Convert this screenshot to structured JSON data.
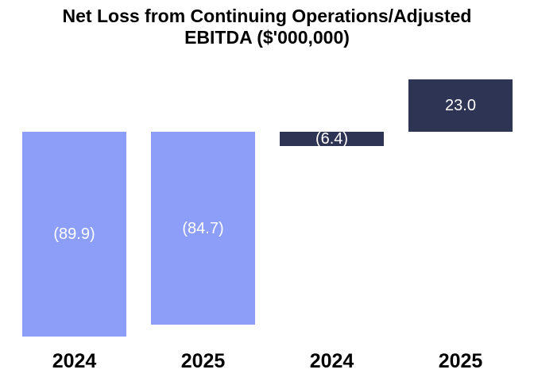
{
  "title_lines": [
    "Net Loss from Continuing Operations/Adjusted",
    "EBITDA ($'000,000)"
  ],
  "colors": {
    "background": "#ffffff",
    "title_text": "#000000",
    "axis_label_text": "#000000",
    "value_label_text": "#ffffff",
    "light_bar": "#8c9ef8",
    "dark_bar": "#2d3454"
  },
  "chart_data": {
    "type": "bar",
    "title": "Net Loss from Continuing Operations/Adjusted EBITDA ($'000,000)",
    "xlabel": "",
    "ylabel": "",
    "categories": [
      "2024",
      "2025",
      "2024",
      "2025"
    ],
    "values": [
      -89.9,
      -84.7,
      -6.4,
      23.0
    ],
    "value_labels": [
      "(89.9)",
      "(84.7)",
      "(6.4)",
      "23.0"
    ],
    "bar_colors": [
      "#8c9ef8",
      "#8c9ef8",
      "#2d3454",
      "#2d3454"
    ],
    "baseline": 0,
    "ylim": [
      -100,
      30
    ],
    "grid": false,
    "legend": "none",
    "axis_lines": false,
    "value_label_position": "center-of-bar"
  }
}
